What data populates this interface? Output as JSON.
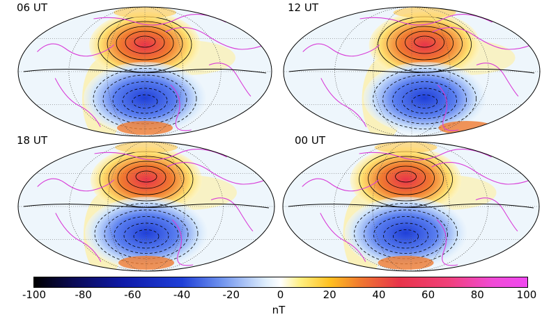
{
  "panels": [
    {
      "label": "06 UT",
      "variant": 0
    },
    {
      "label": "12 UT",
      "variant": 1
    },
    {
      "label": "18 UT",
      "variant": 2
    },
    {
      "label": "00 UT",
      "variant": 3
    }
  ],
  "colorbar": {
    "ticks": [
      "-100",
      "-80",
      "-60",
      "-40",
      "-20",
      "0",
      "20",
      "40",
      "60",
      "80",
      "100"
    ],
    "unit": "nT",
    "min": -100,
    "max": 100
  },
  "colors": {
    "positive_core": "#e8344a",
    "positive_mid": "#f07a30",
    "positive_edge": "#ffe070",
    "negative_core": "#1f3fd8",
    "negative_mid": "#5a7ff0",
    "negative_edge": "#cfe4fb",
    "coastline": "#d83cd8"
  }
}
